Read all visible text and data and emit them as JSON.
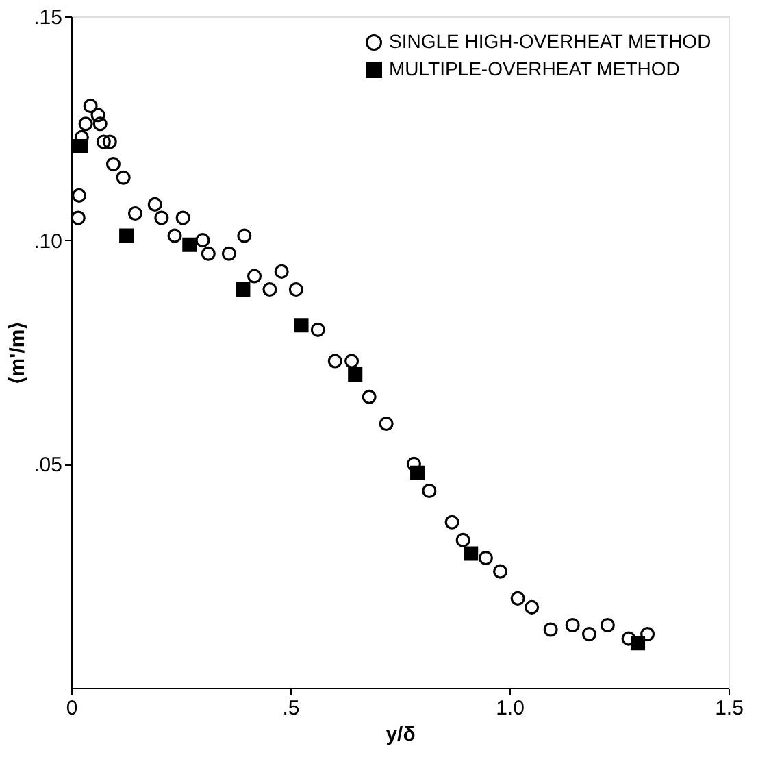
{
  "chart_data": {
    "type": "scatter",
    "xlabel": "y/δ",
    "ylabel": "⟨m'/m⟩",
    "xlim": [
      0,
      1.5
    ],
    "ylim": [
      0,
      0.15
    ],
    "xticks": [
      {
        "value": 0,
        "label": "0"
      },
      {
        "value": 0.5,
        "label": ".5"
      },
      {
        "value": 1.0,
        "label": "1.0"
      },
      {
        "value": 1.5,
        "label": "1.5"
      }
    ],
    "yticks": [
      {
        "value": 0.05,
        "label": ".05"
      },
      {
        "value": 0.1,
        "label": ".10"
      },
      {
        "value": 0.15,
        "label": ".15"
      }
    ],
    "legend": "top right",
    "grid": false,
    "series": [
      {
        "name": "SINGLE HIGH-OVERHEAT METHOD",
        "color": "#000000",
        "marker": "circle",
        "x": [
          0.016,
          0.018,
          0.024,
          0.033,
          0.044,
          0.061,
          0.066,
          0.074,
          0.088,
          0.096,
          0.119,
          0.146,
          0.191,
          0.206,
          0.236,
          0.255,
          0.3,
          0.313,
          0.36,
          0.395,
          0.418,
          0.453,
          0.48,
          0.513,
          0.563,
          0.602,
          0.64,
          0.68,
          0.719,
          0.782,
          0.817,
          0.869,
          0.894,
          0.946,
          0.979,
          1.019,
          1.051,
          1.094,
          1.144,
          1.182,
          1.224,
          1.272,
          1.315
        ],
        "values": [
          0.105,
          0.11,
          0.123,
          0.126,
          0.13,
          0.128,
          0.126,
          0.122,
          0.122,
          0.117,
          0.114,
          0.106,
          0.108,
          0.105,
          0.101,
          0.105,
          0.1,
          0.097,
          0.097,
          0.101,
          0.092,
          0.089,
          0.093,
          0.089,
          0.08,
          0.073,
          0.073,
          0.065,
          0.059,
          0.05,
          0.044,
          0.037,
          0.033,
          0.029,
          0.026,
          0.02,
          0.018,
          0.013,
          0.014,
          0.012,
          0.014,
          0.011,
          0.012
        ]
      },
      {
        "name": "MULTIPLE-OVERHEAT METHOD",
        "color": "#000000",
        "marker": "square",
        "x": [
          0.021,
          0.126,
          0.27,
          0.392,
          0.525,
          0.648,
          0.79,
          0.912,
          1.293
        ],
        "values": [
          0.121,
          0.101,
          0.099,
          0.089,
          0.081,
          0.07,
          0.048,
          0.03,
          0.01
        ]
      }
    ]
  }
}
